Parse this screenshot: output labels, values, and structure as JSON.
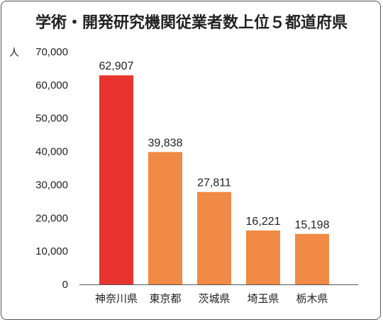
{
  "chart_data": {
    "type": "bar",
    "title": "学術・開発研究機関従業者数上位５都道府県",
    "ylabel": "人",
    "xlabel": "",
    "categories": [
      "神奈川県",
      "東京都",
      "茨城県",
      "埼玉県",
      "栃木県"
    ],
    "values": [
      62907,
      39838,
      27811,
      16221,
      15198
    ],
    "value_labels": [
      "62,907",
      "39,838",
      "27,811",
      "16,221",
      "15,198"
    ],
    "ylim": [
      0,
      70000
    ],
    "yticks": [
      0,
      10000,
      20000,
      30000,
      40000,
      50000,
      60000,
      70000
    ],
    "ytick_labels": [
      "0",
      "10,000",
      "20,000",
      "30,000",
      "40,000",
      "50,000",
      "60,000",
      "70,000"
    ],
    "grid": false,
    "colors": {
      "highlight": "#e8342e",
      "bar": "#f08a45",
      "axis": "#555555"
    }
  }
}
